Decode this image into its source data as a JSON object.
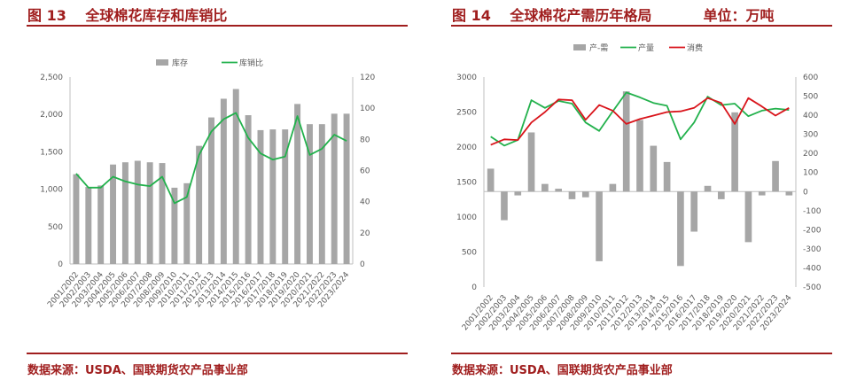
{
  "left": {
    "fig_label": "图 13",
    "title": "全球棉花库存和库销比",
    "source": "数据来源：USDA、国联期货农产品事业部"
  },
  "right": {
    "fig_label": "图 14",
    "title": "全球棉花产需历年格局",
    "unit": "单位：万吨",
    "source": "数据来源：USDA、国联期货农产品事业部"
  },
  "colors": {
    "title": "#a01e1e",
    "bar": "#a6a6a6",
    "green": "#22b14c",
    "red": "#d9141b"
  },
  "chart_data": [
    {
      "type": "bar+line",
      "categories": [
        "2001/2002",
        "2002/2003",
        "2003/2004",
        "2004/2005",
        "2005/2006",
        "2006/2007",
        "2007/2008",
        "2008/2009",
        "2009/2010",
        "2010/2011",
        "2011/2012",
        "2012/2013",
        "2013/2014",
        "2014/2015",
        "2015/2016",
        "2016/2017",
        "2017/2018",
        "2018/2019",
        "2019/2020",
        "2020/2021",
        "2021/2022",
        "2022/2023",
        "2023/2024"
      ],
      "series": [
        {
          "name": "库存",
          "type": "bar",
          "axis": "left",
          "values": [
            1200,
            1030,
            1050,
            1330,
            1360,
            1380,
            1360,
            1350,
            1020,
            1080,
            1580,
            1960,
            2210,
            2340,
            1990,
            1790,
            1800,
            1800,
            2140,
            1870,
            1870,
            2010,
            2010
          ]
        },
        {
          "name": "库销比",
          "type": "line",
          "axis": "right",
          "values": [
            58,
            49,
            49,
            56,
            53,
            51,
            50,
            56,
            39,
            43,
            70,
            85,
            93,
            97,
            81,
            71,
            67,
            69,
            95,
            70,
            74,
            83,
            79
          ]
        }
      ],
      "y_left": {
        "min": 0,
        "max": 2500,
        "ticks": [
          "0",
          "500",
          "1,000",
          "1,500",
          "2,000",
          "2,500"
        ]
      },
      "y_right": {
        "min": 0,
        "max": 120,
        "ticks": [
          "0",
          "20",
          "40",
          "60",
          "80",
          "100",
          "120"
        ]
      },
      "legend_position": "top",
      "grid": false
    },
    {
      "type": "bar+line",
      "categories": [
        "2001/2002",
        "2002/2003",
        "2003/2004",
        "2004/2005",
        "2005/2006",
        "2006/2007",
        "2007/2008",
        "2008/2009",
        "2009/2010",
        "2010/2011",
        "2011/2012",
        "2012/2013",
        "2013/2014",
        "2014/2015",
        "2015/2016",
        "2016/2017",
        "2017/2018",
        "2018/2019",
        "2019/2020",
        "2020/2021",
        "2021/2022",
        "2022/2023",
        "2023/2024"
      ],
      "series": [
        {
          "name": "产-需",
          "type": "bar",
          "axis": "right",
          "values": [
            120,
            -150,
            -20,
            310,
            40,
            15,
            -40,
            -30,
            -365,
            40,
            525,
            375,
            240,
            155,
            -390,
            -210,
            30,
            -40,
            415,
            -265,
            -20,
            160,
            -20
          ]
        },
        {
          "name": "产量",
          "type": "line",
          "axis": "left",
          "values": [
            2150,
            2020,
            2100,
            2670,
            2560,
            2660,
            2620,
            2350,
            2230,
            2510,
            2780,
            2710,
            2630,
            2590,
            2110,
            2350,
            2720,
            2600,
            2620,
            2440,
            2520,
            2550,
            2530
          ]
        },
        {
          "name": "消费",
          "type": "line",
          "axis": "left",
          "values": [
            2030,
            2110,
            2100,
            2350,
            2500,
            2680,
            2670,
            2390,
            2600,
            2520,
            2330,
            2400,
            2450,
            2500,
            2510,
            2560,
            2700,
            2630,
            2330,
            2700,
            2580,
            2450,
            2560
          ]
        }
      ],
      "y_left": {
        "min": 0,
        "max": 3000,
        "ticks": [
          "0",
          "500",
          "1000",
          "1500",
          "2000",
          "2500",
          "3000"
        ]
      },
      "y_right": {
        "min": -500,
        "max": 600,
        "ticks": [
          "-500",
          "-400",
          "-300",
          "-200",
          "-100",
          "0",
          "100",
          "200",
          "300",
          "400",
          "500",
          "600"
        ]
      },
      "legend_position": "top",
      "grid": false
    }
  ]
}
